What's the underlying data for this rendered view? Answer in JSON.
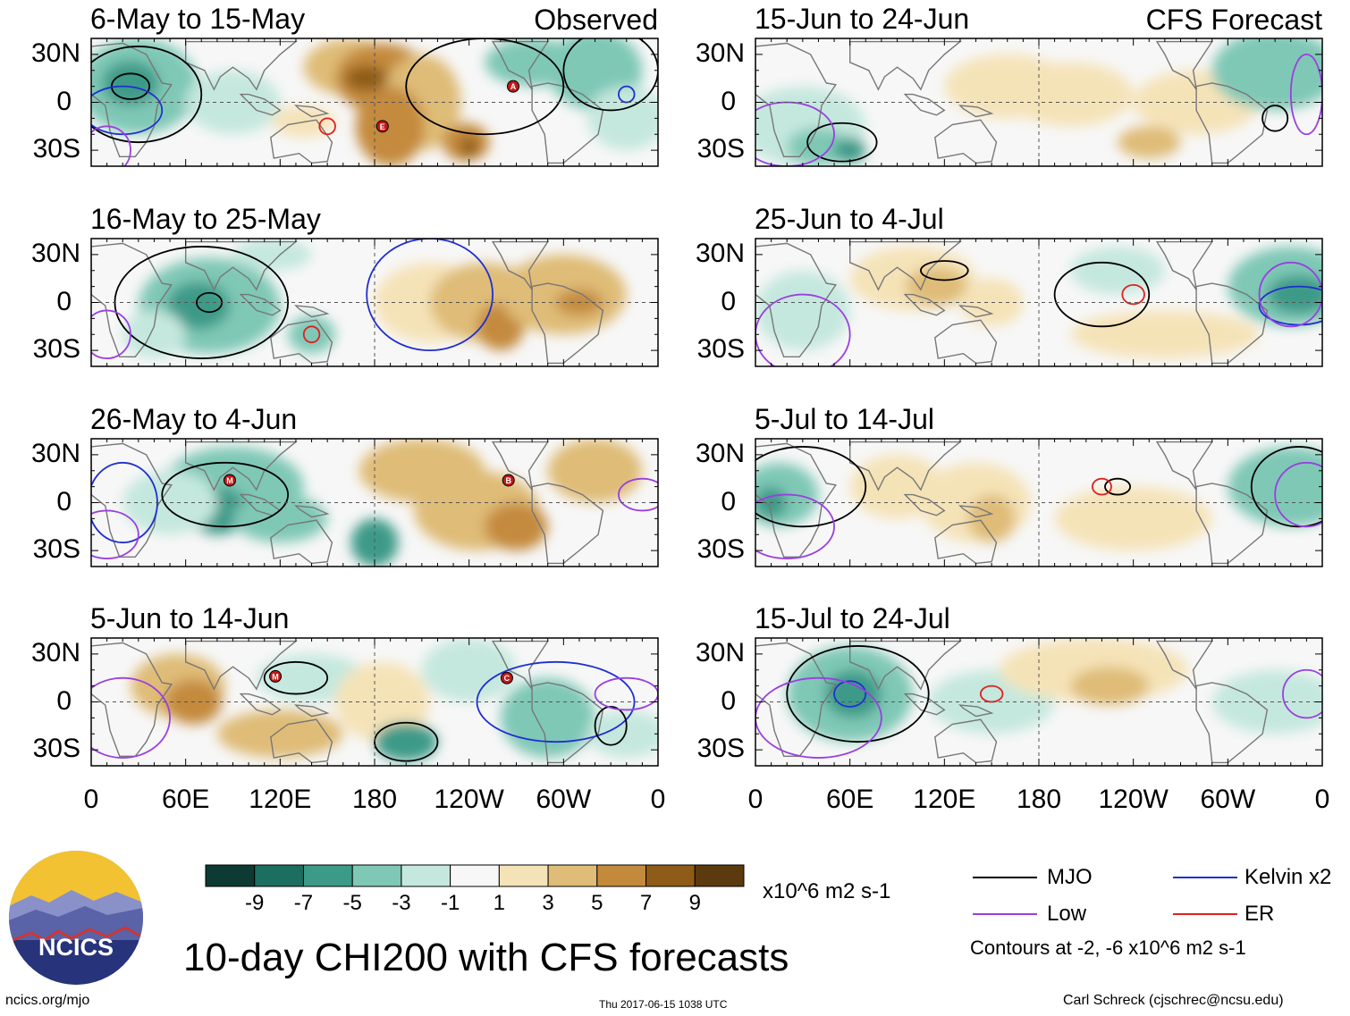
{
  "chart_data": {
    "type": "heatmap",
    "title": "10-day CHI200 with CFS forecasts",
    "units": "x10^6 m2 s-1",
    "columns": [
      {
        "label": "Observed",
        "panels": [
          "6-May to 15-May",
          "16-May to 25-May",
          "26-May to 4-Jun",
          "5-Jun to 14-Jun"
        ]
      },
      {
        "label": "CFS Forecast",
        "panels": [
          "15-Jun to 24-Jun",
          "25-Jun to 4-Jul",
          "5-Jul to 14-Jul",
          "15-Jul to 24-Jul"
        ]
      }
    ],
    "xticks": [
      "0",
      "60E",
      "120E",
      "180",
      "120W",
      "60W",
      "0"
    ],
    "yticks": [
      "30N",
      "0",
      "30S"
    ],
    "xlim": [
      0,
      360
    ],
    "ylim": [
      -40,
      40
    ],
    "colorbar": {
      "labels": [
        "-9",
        "-7",
        "-5",
        "-3",
        "-1",
        "1",
        "3",
        "5",
        "7",
        "9"
      ],
      "colors": [
        "#0d3a32",
        "#1c6f60",
        "#3c9a88",
        "#7fc8b6",
        "#c5e8de",
        "#f7f7f7",
        "#f5e3b8",
        "#dfbc77",
        "#c48a3c",
        "#8f5b18",
        "#5c3a0f"
      ]
    },
    "legend": [
      {
        "label": "MJO",
        "color": "#000000"
      },
      {
        "label": "Kelvin x2",
        "color": "#1f2fd0"
      },
      {
        "label": "Low",
        "color": "#9a3fe0"
      },
      {
        "label": "ER",
        "color": "#e02020"
      }
    ],
    "contour_note": "Contours at -2, -6 x10^6 m2 s-1",
    "storm_markers": [
      {
        "panel": 0,
        "letter": "E",
        "lon": 185,
        "lat": -15
      },
      {
        "panel": 0,
        "letter": "A",
        "lon": 268,
        "lat": 10
      },
      {
        "panel": 2,
        "letter": "M",
        "lon": 88,
        "lat": 14
      },
      {
        "panel": 2,
        "letter": "B",
        "lon": 265,
        "lat": 14
      },
      {
        "panel": 3,
        "letter": "M",
        "lon": 117,
        "lat": 16
      },
      {
        "panel": 3,
        "letter": "C",
        "lon": 264,
        "lat": 15
      }
    ]
  },
  "branding": {
    "logo_text": "NCICS",
    "site": "ncics.org/mjo",
    "timestamp": "Thu 2017-06-15 1038 UTC",
    "author": "Carl Schreck (cjschrec@ncsu.edu)"
  }
}
